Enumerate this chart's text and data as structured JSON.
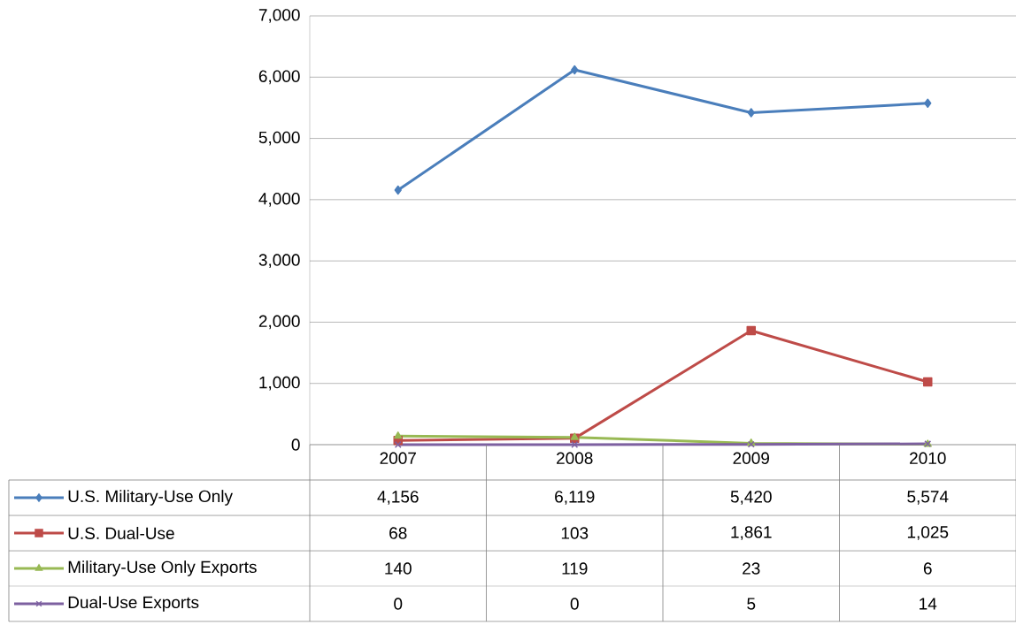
{
  "chart_data": {
    "type": "line",
    "categories": [
      "2007",
      "2008",
      "2009",
      "2010"
    ],
    "series": [
      {
        "name": "U.S. Military-Use Only",
        "color": "#4a7ebb",
        "marker": "diamond",
        "values": [
          4156,
          6119,
          5420,
          5574
        ],
        "value_labels": [
          "4,156",
          "6,119",
          "5,420",
          "5,574"
        ]
      },
      {
        "name": "U.S. Dual-Use",
        "color": "#be4b48",
        "marker": "square",
        "values": [
          68,
          103,
          1861,
          1025
        ],
        "value_labels": [
          "68",
          "103",
          "1,861",
          "1,025"
        ]
      },
      {
        "name": "Military-Use Only Exports",
        "color": "#98b954",
        "marker": "triangle",
        "values": [
          140,
          119,
          23,
          6
        ],
        "value_labels": [
          "140",
          "119",
          "23",
          "6"
        ]
      },
      {
        "name": "Dual-Use Exports",
        "color": "#7d60a0",
        "marker": "cross",
        "values": [
          0,
          0,
          5,
          14
        ],
        "value_labels": [
          "0",
          "0",
          "5",
          "14"
        ]
      }
    ],
    "ylim": [
      0,
      7000
    ],
    "yticks": [
      0,
      {
        "value": 1000,
        "label": "1,000"
      },
      {
        "value": 2000,
        "label": "2,000"
      },
      {
        "value": 3000,
        "label": "3,000"
      },
      {
        "value": 4000,
        "label": "4,000"
      },
      {
        "value": 5000,
        "label": "5,000"
      },
      {
        "value": 6000,
        "label": "6,000"
      },
      {
        "value": 7000,
        "label": "7,000"
      }
    ],
    "grid": "y",
    "legend": "bottom"
  }
}
